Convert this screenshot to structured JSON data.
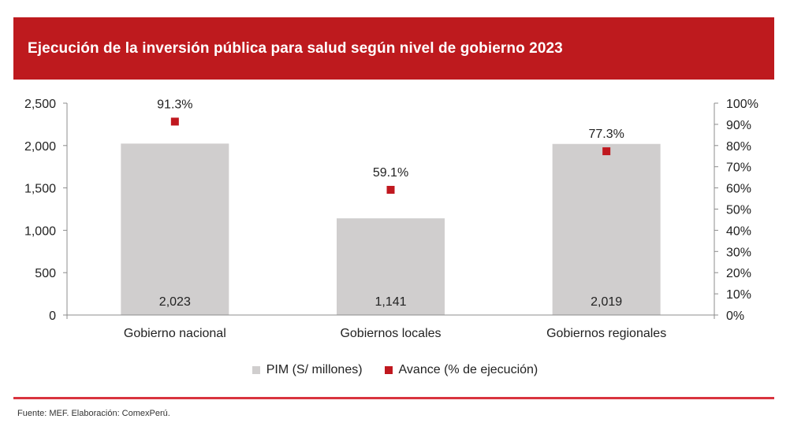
{
  "header": {
    "title": "Ejecución de la inversión pública para salud según nivel de gobierno 2023"
  },
  "colors": {
    "banner": "#BE1A1E",
    "bar": "#D0CECE",
    "marker": "#C0181F",
    "footer_line": "#D9343F",
    "axis": "#8C8C8C"
  },
  "legend": {
    "items": [
      {
        "label": "PIM (S/ millones)",
        "color": "#D0CECE"
      },
      {
        "label": "Avance (% de ejecución)",
        "color": "#C0181F"
      }
    ]
  },
  "footer": {
    "source": "Fuente: MEF. Elaboración: ComexPerú."
  },
  "chart_data": {
    "type": "bar",
    "title": "Ejecución de la inversión pública para salud según nivel de gobierno 2023",
    "categories": [
      "Gobierno nacional",
      "Gobiernos locales",
      "Gobiernos regionales"
    ],
    "series": [
      {
        "name": "PIM (S/ millones)",
        "type": "bar",
        "axis": "left",
        "values": [
          2023,
          1141,
          2019
        ],
        "labels": [
          "2,023",
          "1,141",
          "2,019"
        ]
      },
      {
        "name": "Avance (% de ejecución)",
        "type": "scatter",
        "axis": "right",
        "values": [
          91.3,
          59.1,
          77.3
        ],
        "labels": [
          "91.3%",
          "59.1%",
          "77.3%"
        ]
      }
    ],
    "y_left": {
      "label": "",
      "range": [
        0,
        2500
      ],
      "ticks": [
        0,
        500,
        1000,
        1500,
        2000,
        2500
      ],
      "tick_labels": [
        "0",
        "500",
        "1,000",
        "1,500",
        "2,000",
        "2,500"
      ]
    },
    "y_right": {
      "label": "",
      "range": [
        0,
        100
      ],
      "ticks": [
        0,
        10,
        20,
        30,
        40,
        50,
        60,
        70,
        80,
        90,
        100
      ],
      "tick_labels": [
        "0%",
        "10%",
        "20%",
        "30%",
        "40%",
        "50%",
        "60%",
        "70%",
        "80%",
        "90%",
        "100%"
      ]
    },
    "xlabel": "",
    "grid": false,
    "legend_position": "bottom"
  }
}
